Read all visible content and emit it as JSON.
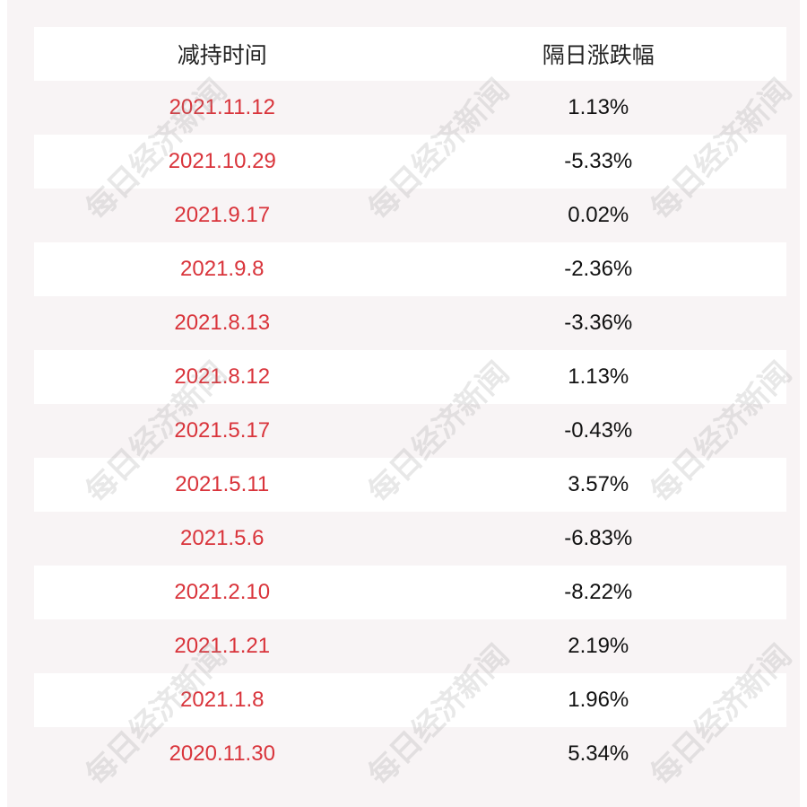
{
  "table": {
    "headers": [
      "减持时间",
      "隔日涨跌幅"
    ],
    "rows": [
      {
        "date": "2021.11.12",
        "change": "1.13%"
      },
      {
        "date": "2021.10.29",
        "change": "-5.33%"
      },
      {
        "date": "2021.9.17",
        "change": "0.02%"
      },
      {
        "date": "2021.9.8",
        "change": "-2.36%"
      },
      {
        "date": "2021.8.13",
        "change": "-3.36%"
      },
      {
        "date": "2021.8.12",
        "change": "1.13%"
      },
      {
        "date": "2021.5.17",
        "change": "-0.43%"
      },
      {
        "date": "2021.5.11",
        "change": "3.57%"
      },
      {
        "date": "2021.5.6",
        "change": "-6.83%"
      },
      {
        "date": "2021.2.10",
        "change": "-8.22%"
      },
      {
        "date": "2021.1.21",
        "change": "2.19%"
      },
      {
        "date": "2021.1.8",
        "change": "1.96%"
      },
      {
        "date": "2020.11.30",
        "change": "5.34%"
      }
    ]
  },
  "watermark": "每日经济新闻",
  "colors": {
    "date": "#d9343b",
    "background": "#f8f4f5"
  }
}
